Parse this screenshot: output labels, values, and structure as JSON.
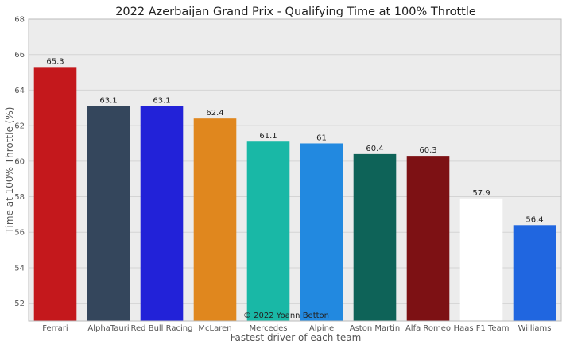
{
  "chart_data": {
    "type": "bar",
    "title": "2022 Azerbaijan Grand Prix - Qualifying Time at 100% Throttle",
    "xlabel": "Fastest driver of each team",
    "ylabel": "Time at 100% Throttle (%)",
    "ylim": [
      51,
      68
    ],
    "yticks": [
      52,
      54,
      56,
      58,
      60,
      62,
      64,
      66,
      68
    ],
    "grid": true,
    "categories": [
      "Ferrari",
      "AlphaTauri",
      "Red Bull Racing",
      "McLaren",
      "Mercedes",
      "Alpine",
      "Aston Martin",
      "Alfa Romeo",
      "Haas F1 Team",
      "Williams"
    ],
    "values": [
      65.3,
      63.1,
      63.1,
      62.4,
      61.1,
      61,
      60.4,
      60.3,
      57.9,
      56.4
    ],
    "value_labels": [
      "65.3",
      "63.1",
      "63.1",
      "62.4",
      "61.1",
      "61",
      "60.4",
      "60.3",
      "57.9",
      "56.4"
    ],
    "colors": [
      "#c4181c",
      "#34465c",
      "#2222d8",
      "#e0871e",
      "#19b8a6",
      "#2289e0",
      "#0e6358",
      "#7d1114",
      "#ffffff",
      "#2066e0"
    ],
    "watermark": "© 2022 Yoann Betton"
  },
  "style": {
    "plot_background": "#ececec",
    "grid_color": "#d4d4d4",
    "frame_color": "#bbbbbb"
  }
}
